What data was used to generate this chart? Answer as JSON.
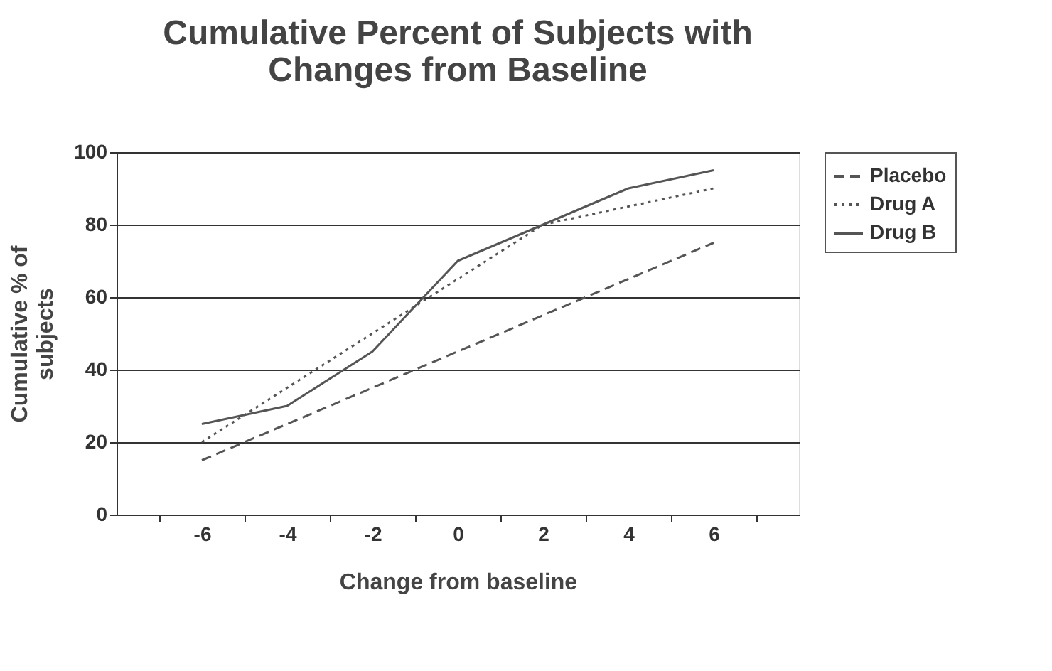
{
  "chart_data": {
    "type": "line",
    "title": [
      "Cumulative Percent of Subjects with",
      "Changes from Baseline"
    ],
    "xlabel": "Change from baseline",
    "ylabel": [
      "Cumulative % of",
      "subjects"
    ],
    "categories": [
      "-6",
      "-4",
      "-2",
      "0",
      "2",
      "4",
      "6"
    ],
    "series": [
      {
        "name": "Placebo",
        "color": "#555555",
        "line_style": "dashed",
        "values": [
          15,
          25,
          35,
          45,
          55,
          65,
          75
        ]
      },
      {
        "name": "Drug A",
        "color": "#555555",
        "line_style": "dotted",
        "values": [
          20,
          35,
          50,
          65,
          80,
          85,
          90
        ]
      },
      {
        "name": "Drug B",
        "color": "#555555",
        "line_style": "solid",
        "values": [
          25,
          30,
          45,
          70,
          80,
          90,
          95
        ]
      }
    ],
    "ylim": [
      0,
      100
    ],
    "yticks": [
      0,
      20,
      40,
      60,
      80,
      100
    ],
    "grid": "y",
    "legend": "right",
    "marker": "none"
  }
}
